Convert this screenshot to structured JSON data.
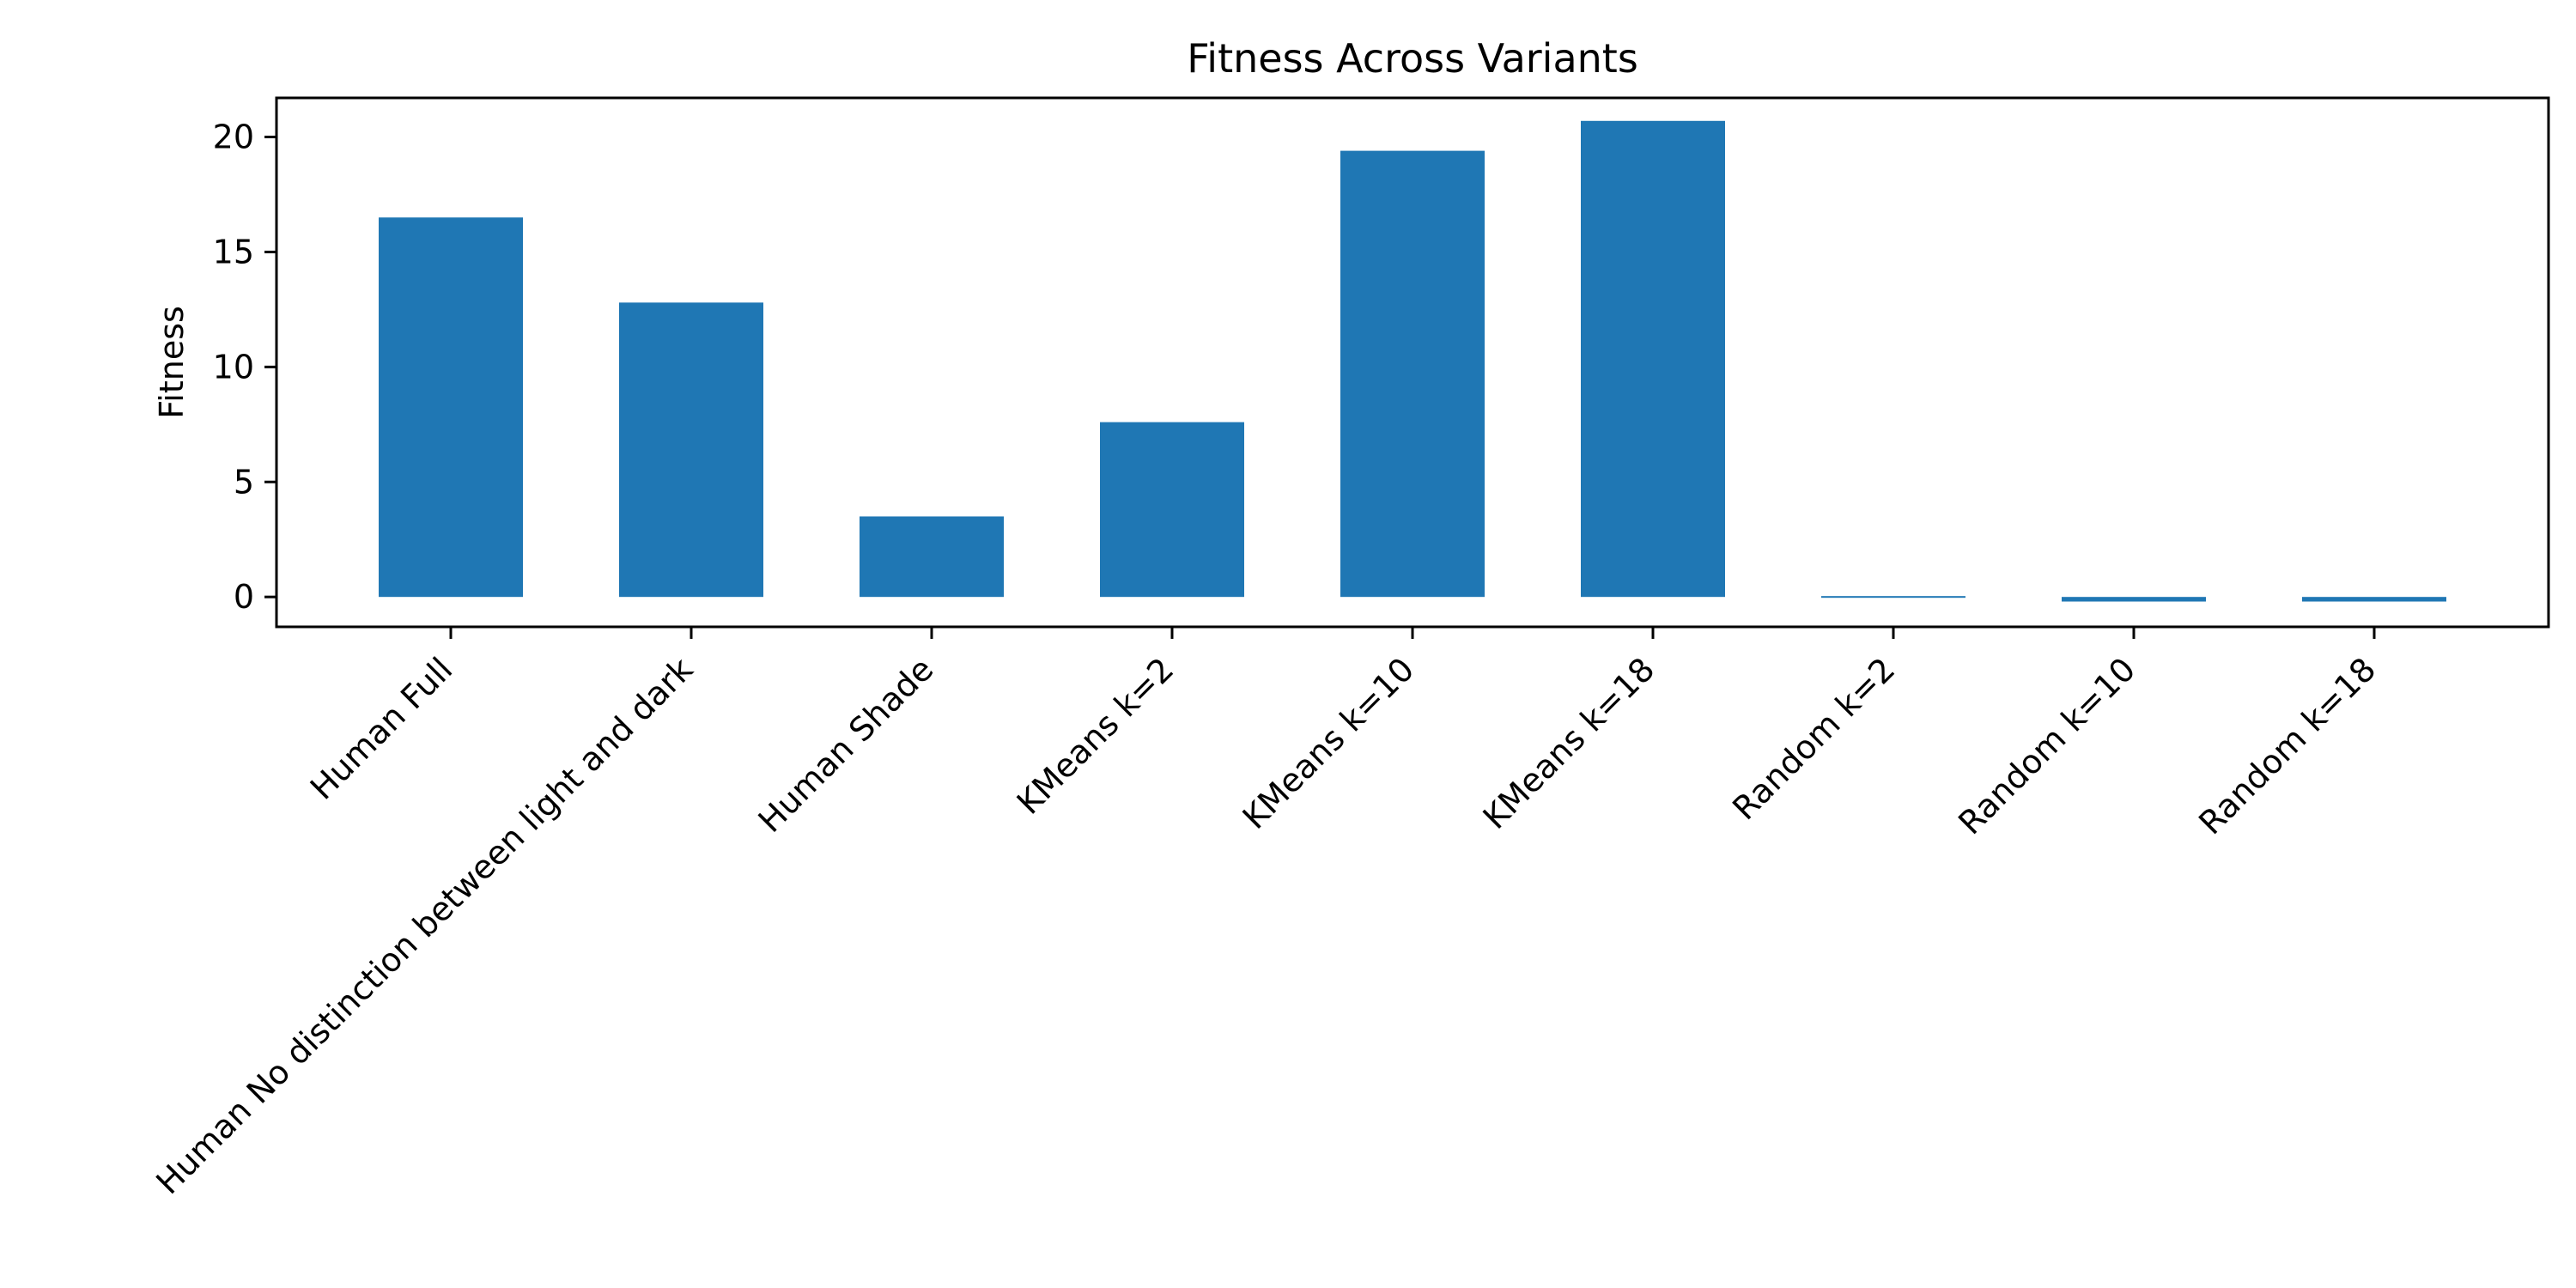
{
  "chart_data": {
    "type": "bar",
    "title": "Fitness Across Variants",
    "xlabel": "",
    "ylabel": "Fitness",
    "categories": [
      "Human Full",
      "Human No distinction between light and dark",
      "Human Shade",
      "KMeans k=2",
      "KMeans k=10",
      "KMeans k=18",
      "Random k=2",
      "Random k=10",
      "Random k=18"
    ],
    "values": [
      16.5,
      12.8,
      3.5,
      7.6,
      19.4,
      20.7,
      0.05,
      -0.2,
      -0.2
    ],
    "ylim": [
      -1.3,
      21.7
    ],
    "yticks": [
      0,
      5,
      10,
      15,
      20
    ],
    "grid": false,
    "bar_color": "#1f77b4"
  }
}
